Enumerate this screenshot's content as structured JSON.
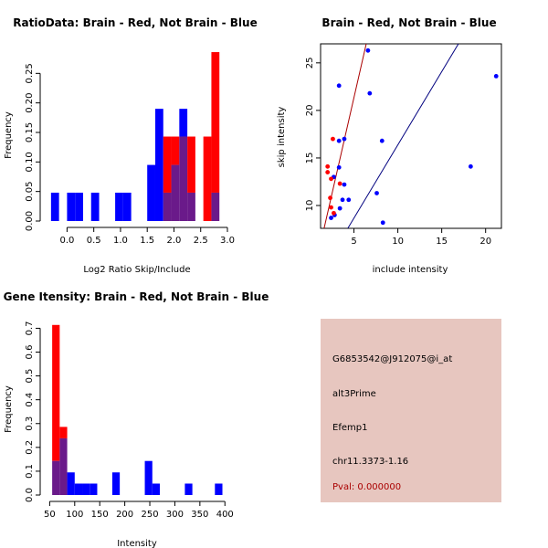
{
  "colors": {
    "red": "#ff0000",
    "blue": "#0000ff",
    "overlap": "#6a1a8a",
    "darkred": "#aa0000",
    "darkblue": "#00007f",
    "panel": "#e7c6bf"
  },
  "chart_data": [
    {
      "type": "bar",
      "title": "RatioData: Brain - Red, Not Brain - Blue",
      "xlabel": "Log2 Ratio Skip/Include",
      "ylabel": "Frequency",
      "xlim": [
        -0.4,
        3.0
      ],
      "ylim": [
        0,
        0.3
      ],
      "xticks": [
        0.0,
        0.5,
        1.0,
        1.5,
        2.0,
        2.5,
        3.0
      ],
      "xtick_labels": [
        "0.0",
        "0.5",
        "1.0",
        "1.5",
        "2.0",
        "2.5",
        "3.0"
      ],
      "yticks": [
        0.0,
        0.05,
        0.1,
        0.15,
        0.2,
        0.25
      ],
      "ytick_labels": [
        "0.00",
        "0.05",
        "0.10",
        "0.15",
        "0.20",
        "0.25"
      ],
      "bin_width": 0.15,
      "bins": [
        {
          "x0": -0.3,
          "red": 0,
          "blue": 0.048
        },
        {
          "x0": 0.0,
          "red": 0,
          "blue": 0.048
        },
        {
          "x0": 0.15,
          "red": 0,
          "blue": 0.048
        },
        {
          "x0": 0.45,
          "red": 0,
          "blue": 0.048
        },
        {
          "x0": 0.9,
          "red": 0,
          "blue": 0.048
        },
        {
          "x0": 1.05,
          "red": 0,
          "blue": 0.048
        },
        {
          "x0": 1.5,
          "red": 0,
          "blue": 0.095
        },
        {
          "x0": 1.65,
          "red": 0,
          "blue": 0.19
        },
        {
          "x0": 1.8,
          "red": 0.143,
          "blue": 0.048
        },
        {
          "x0": 1.95,
          "red": 0.143,
          "blue": 0.095
        },
        {
          "x0": 2.1,
          "red": 0.143,
          "blue": 0.19
        },
        {
          "x0": 2.25,
          "red": 0.143,
          "blue": 0.048
        },
        {
          "x0": 2.55,
          "red": 0.143,
          "blue": 0
        },
        {
          "x0": 2.7,
          "red": 0.286,
          "blue": 0.048
        }
      ]
    },
    {
      "type": "scatter",
      "title": "Brain - Red, Not Brain - Blue",
      "xlabel": "include intensity",
      "ylabel": "skip intensity",
      "xlim": [
        1.2,
        21.8
      ],
      "ylim": [
        7.6,
        27.0
      ],
      "xticks": [
        5,
        10,
        15,
        20
      ],
      "xtick_labels": [
        "5",
        "10",
        "15",
        "20"
      ],
      "yticks": [
        10,
        15,
        20,
        25
      ],
      "ytick_labels": [
        "10",
        "15",
        "20",
        "25"
      ],
      "red_points": [
        [
          2.0,
          14.1
        ],
        [
          2.0,
          13.5
        ],
        [
          2.4,
          12.8
        ],
        [
          2.6,
          17.0
        ],
        [
          2.3,
          10.8
        ],
        [
          2.4,
          9.8
        ],
        [
          2.7,
          9.2
        ],
        [
          3.4,
          12.3
        ]
      ],
      "blue_points": [
        [
          6.6,
          26.3
        ],
        [
          3.3,
          22.6
        ],
        [
          6.8,
          21.8
        ],
        [
          21.2,
          23.6
        ],
        [
          3.9,
          17.0
        ],
        [
          3.3,
          16.8
        ],
        [
          8.2,
          16.8
        ],
        [
          18.3,
          14.1
        ],
        [
          3.3,
          14.0
        ],
        [
          2.7,
          13.0
        ],
        [
          3.9,
          12.2
        ],
        [
          7.6,
          11.3
        ],
        [
          3.7,
          10.6
        ],
        [
          4.4,
          10.6
        ],
        [
          3.4,
          9.7
        ],
        [
          2.8,
          9.0
        ],
        [
          2.4,
          8.7
        ],
        [
          8.3,
          8.2
        ]
      ],
      "red_line": [
        [
          1.6,
          7.6
        ],
        [
          6.4,
          27.0
        ]
      ],
      "blue_line": [
        [
          4.3,
          7.6
        ],
        [
          16.9,
          27.0
        ]
      ]
    },
    {
      "type": "bar",
      "title": "Gene Itensity: Brain - Red, Not Brain - Blue",
      "xlabel": "Intensity",
      "ylabel": "Frequency",
      "xlim": [
        42,
        405
      ],
      "ylim": [
        0,
        0.74
      ],
      "xticks": [
        50,
        100,
        150,
        200,
        250,
        300,
        350,
        400
      ],
      "xtick_labels": [
        "50",
        "100",
        "150",
        "200",
        "250",
        "300",
        "350",
        "400"
      ],
      "yticks": [
        0.0,
        0.1,
        0.2,
        0.3,
        0.4,
        0.5,
        0.6,
        0.7
      ],
      "ytick_labels": [
        "0.0",
        "0.1",
        "0.2",
        "0.3",
        "0.4",
        "0.5",
        "0.6",
        "0.7"
      ],
      "bin_width": 15,
      "bins": [
        {
          "x0": 55,
          "red": 0.714,
          "blue": 0.143
        },
        {
          "x0": 70,
          "red": 0.286,
          "blue": 0.238
        },
        {
          "x0": 85,
          "red": 0,
          "blue": 0.095
        },
        {
          "x0": 100,
          "red": 0,
          "blue": 0.048
        },
        {
          "x0": 115,
          "red": 0,
          "blue": 0.048
        },
        {
          "x0": 130,
          "red": 0,
          "blue": 0.048
        },
        {
          "x0": 175,
          "red": 0,
          "blue": 0.095
        },
        {
          "x0": 240,
          "red": 0,
          "blue": 0.143
        },
        {
          "x0": 255,
          "red": 0,
          "blue": 0.048
        },
        {
          "x0": 320,
          "red": 0,
          "blue": 0.048
        },
        {
          "x0": 380,
          "red": 0,
          "blue": 0.048
        }
      ]
    }
  ],
  "info_panel": {
    "probe_id": "G6853542@J912075@i_at",
    "event_type": "alt3Prime",
    "gene": "Efemp1",
    "location": "chr11.3373-1.16",
    "pval": "Pval: 0.000000"
  }
}
